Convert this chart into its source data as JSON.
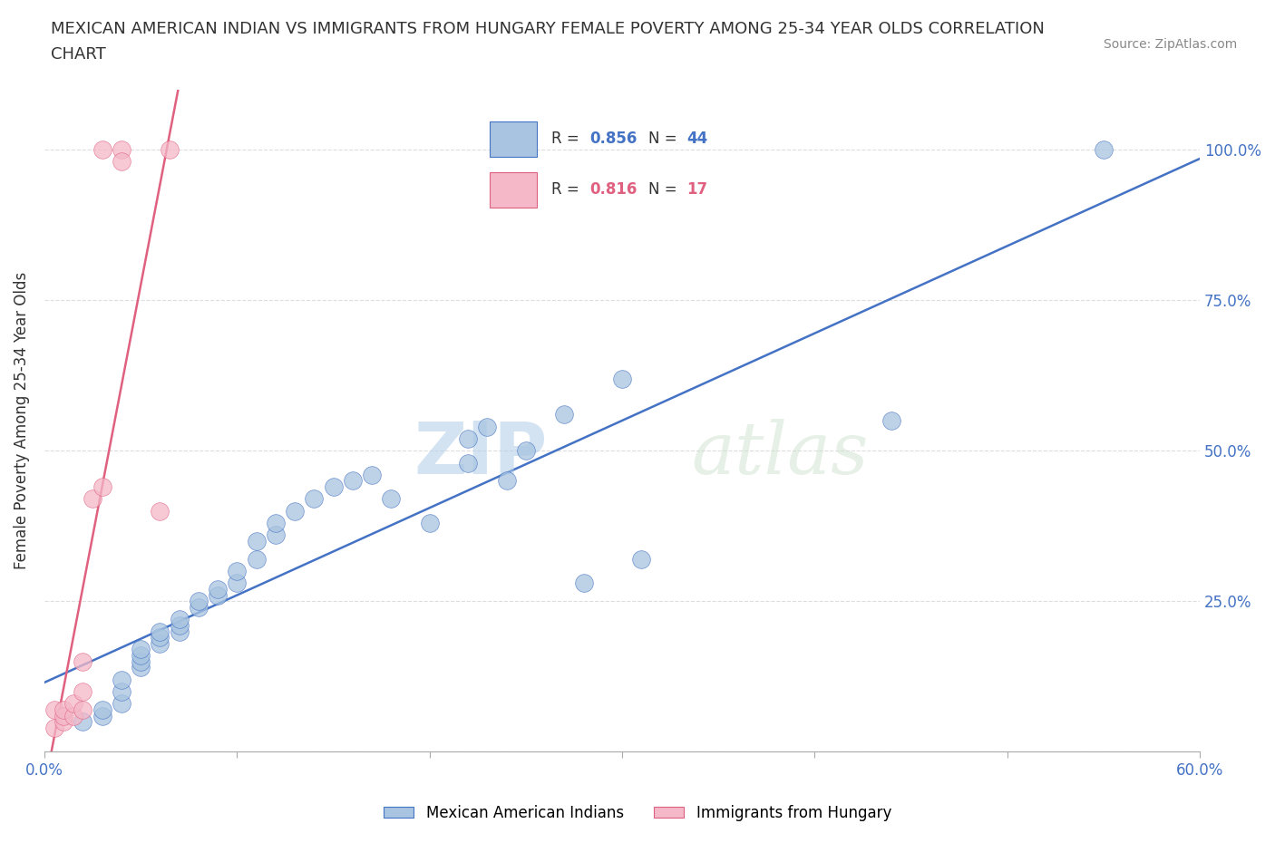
{
  "title_line1": "MEXICAN AMERICAN INDIAN VS IMMIGRANTS FROM HUNGARY FEMALE POVERTY AMONG 25-34 YEAR OLDS CORRELATION",
  "title_line2": "CHART",
  "source_text": "Source: ZipAtlas.com",
  "ylabel": "Female Poverty Among 25-34 Year Olds",
  "xlim": [
    0.0,
    0.6
  ],
  "ylim": [
    0.0,
    1.1
  ],
  "blue_color": "#a8c4e0",
  "blue_line_color": "#4472c4",
  "pink_color": "#f4b8c8",
  "pink_line_color": "#e06080",
  "R_blue": 0.856,
  "N_blue": 44,
  "R_pink": 0.816,
  "N_pink": 17,
  "watermark_zip": "ZIP",
  "watermark_atlas": "atlas",
  "legend_blue_label": "Mexican American Indians",
  "legend_pink_label": "Immigrants from Hungary",
  "blue_x": [
    0.02,
    0.03,
    0.03,
    0.04,
    0.04,
    0.04,
    0.05,
    0.05,
    0.05,
    0.05,
    0.06,
    0.06,
    0.06,
    0.07,
    0.07,
    0.07,
    0.08,
    0.08,
    0.09,
    0.09,
    0.1,
    0.1,
    0.11,
    0.11,
    0.12,
    0.12,
    0.13,
    0.14,
    0.15,
    0.16,
    0.17,
    0.18,
    0.2,
    0.22,
    0.22,
    0.23,
    0.24,
    0.25,
    0.27,
    0.28,
    0.3,
    0.31,
    0.44,
    0.55
  ],
  "blue_y": [
    0.05,
    0.06,
    0.07,
    0.08,
    0.1,
    0.12,
    0.14,
    0.15,
    0.16,
    0.17,
    0.18,
    0.19,
    0.2,
    0.2,
    0.21,
    0.22,
    0.24,
    0.25,
    0.26,
    0.27,
    0.28,
    0.3,
    0.32,
    0.35,
    0.36,
    0.38,
    0.4,
    0.42,
    0.44,
    0.45,
    0.46,
    0.42,
    0.38,
    0.48,
    0.52,
    0.54,
    0.45,
    0.5,
    0.56,
    0.28,
    0.62,
    0.32,
    0.55,
    1.0
  ],
  "pink_x": [
    0.005,
    0.005,
    0.01,
    0.01,
    0.01,
    0.015,
    0.015,
    0.02,
    0.02,
    0.02,
    0.025,
    0.03,
    0.03,
    0.04,
    0.04,
    0.06,
    0.065
  ],
  "pink_y": [
    0.04,
    0.07,
    0.05,
    0.06,
    0.07,
    0.06,
    0.08,
    0.07,
    0.1,
    0.15,
    0.42,
    0.44,
    1.0,
    1.0,
    0.98,
    0.4,
    1.0
  ],
  "background_color": "#ffffff",
  "grid_color": "#dddddd"
}
